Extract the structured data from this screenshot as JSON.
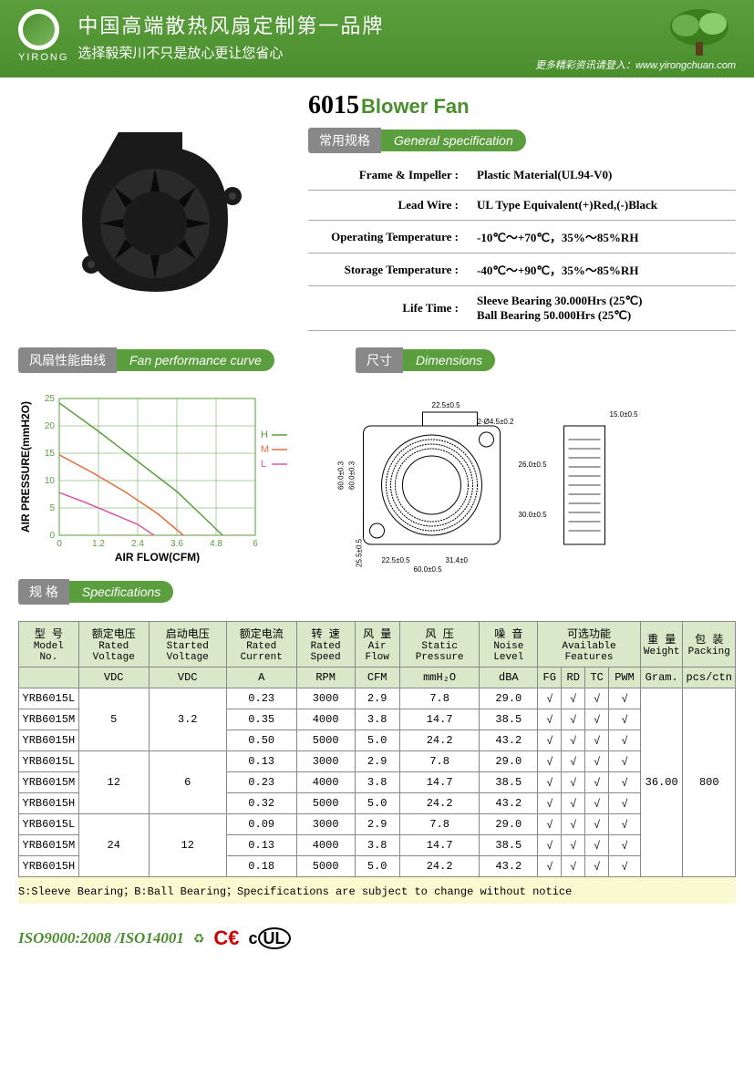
{
  "header": {
    "brand": "YIRONG",
    "title_cn": "中国高端散热风扇定制第一品牌",
    "subtitle_cn": "选择毅荣川不只是放心更让您省心",
    "url_prefix": "更多精彩资讯请登入：",
    "url": "www.yirongchuan.com"
  },
  "product": {
    "model": "6015",
    "name": "Blower Fan"
  },
  "sections": {
    "general_spec": {
      "cn": "常用规格",
      "en": "General specification"
    },
    "perf_curve": {
      "cn": "风扇性能曲线",
      "en": "Fan performance curve"
    },
    "dimensions": {
      "cn": "尺寸",
      "en": "Dimensions"
    },
    "specifications": {
      "cn": "规 格",
      "en": "Specifications"
    }
  },
  "general_specs": [
    {
      "label": "Frame & Impeller :",
      "value": "Plastic Material(UL94-V0)"
    },
    {
      "label": "Lead Wire :",
      "value": "UL Type Equivalent(+)Red,(-)Black"
    },
    {
      "label": "Operating Temperature :",
      "value": "-10℃～+70℃，35%～85%RH"
    },
    {
      "label": "Storage Temperature :",
      "value": "-40℃～+90℃，35%～85%RH"
    },
    {
      "label": "Life Time :",
      "value": "Sleeve Bearing 30.000Hrs (25℃)\nBall Bearing 50.000Hrs (25℃)"
    }
  ],
  "chart": {
    "xlabel": "AIR FLOW(CFM)",
    "ylabel": "AIR PRESSURE(mmH2O)",
    "xlim": [
      0,
      6
    ],
    "ylim": [
      0,
      25
    ],
    "xticks": [
      0,
      1.2,
      2.4,
      3.6,
      4.8,
      6
    ],
    "yticks": [
      0,
      5,
      10,
      15,
      20,
      25
    ],
    "tick_font": 10,
    "label_font": 12,
    "grid_color": "#5a9e3e",
    "series": [
      {
        "name": "H",
        "color": "#5a9e3e",
        "points": [
          [
            0,
            24.2
          ],
          [
            1.2,
            19
          ],
          [
            2.4,
            13.5
          ],
          [
            3.6,
            8
          ],
          [
            5.0,
            0
          ]
        ]
      },
      {
        "name": "M",
        "color": "#e07040",
        "points": [
          [
            0,
            14.7
          ],
          [
            1.0,
            11.5
          ],
          [
            2.0,
            8
          ],
          [
            3.0,
            4
          ],
          [
            3.8,
            0
          ]
        ]
      },
      {
        "name": "L",
        "color": "#d858a8",
        "points": [
          [
            0,
            7.8
          ],
          [
            0.8,
            6
          ],
          [
            1.6,
            4
          ],
          [
            2.4,
            2
          ],
          [
            2.9,
            0
          ]
        ]
      }
    ],
    "legend_pos": "right"
  },
  "dimensions": {
    "labels": [
      "22.5±0.5",
      "15.0±0.5",
      "2-Ø4.5±0.2",
      "26.0±0.5",
      "30.0±0.5",
      "60.0±0.3",
      "60.0±0.3",
      "22.5±0.5",
      "31.4±0",
      "60.0±0.5",
      "25.5±0.5"
    ]
  },
  "spec_table": {
    "headers": [
      {
        "cn": "型  号",
        "en": "Model No.",
        "unit": ""
      },
      {
        "cn": "额定电压",
        "en": "Rated Voltage",
        "unit": "VDC"
      },
      {
        "cn": "启动电压",
        "en": "Started Voltage",
        "unit": "VDC"
      },
      {
        "cn": "额定电流",
        "en": "Rated Current",
        "unit": "A"
      },
      {
        "cn": "转 速",
        "en": "Rated Speed",
        "unit": "RPM"
      },
      {
        "cn": "风 量",
        "en": "Air Flow",
        "unit": "CFM"
      },
      {
        "cn": "风 压",
        "en": "Static Pressure",
        "unit": "mmH₂O"
      },
      {
        "cn": "噪 音",
        "en": "Noise Level",
        "unit": "dBA"
      },
      {
        "cn": "可选功能",
        "en": "Available Features",
        "unit": "",
        "colspan": 4,
        "sub": [
          "FG",
          "RD",
          "TC",
          "PWM"
        ]
      },
      {
        "cn": "重 量",
        "en": "Weight",
        "unit": "Gram."
      },
      {
        "cn": "包 装",
        "en": "Packing",
        "unit": "pcs/ctn"
      }
    ],
    "groups": [
      {
        "voltage": "5",
        "started": "3.2",
        "rows": [
          {
            "model": "YRB6015L",
            "current": "0.23",
            "speed": "3000",
            "flow": "2.9",
            "pressure": "7.8",
            "noise": "29.0"
          },
          {
            "model": "YRB6015M",
            "current": "0.35",
            "speed": "4000",
            "flow": "3.8",
            "pressure": "14.7",
            "noise": "38.5"
          },
          {
            "model": "YRB6015H",
            "current": "0.50",
            "speed": "5000",
            "flow": "5.0",
            "pressure": "24.2",
            "noise": "43.2"
          }
        ]
      },
      {
        "voltage": "12",
        "started": "6",
        "rows": [
          {
            "model": "YRB6015L",
            "current": "0.13",
            "speed": "3000",
            "flow": "2.9",
            "pressure": "7.8",
            "noise": "29.0"
          },
          {
            "model": "YRB6015M",
            "current": "0.23",
            "speed": "4000",
            "flow": "3.8",
            "pressure": "14.7",
            "noise": "38.5"
          },
          {
            "model": "YRB6015H",
            "current": "0.32",
            "speed": "5000",
            "flow": "5.0",
            "pressure": "24.2",
            "noise": "43.2"
          }
        ]
      },
      {
        "voltage": "24",
        "started": "12",
        "rows": [
          {
            "model": "YRB6015L",
            "current": "0.09",
            "speed": "3000",
            "flow": "2.9",
            "pressure": "7.8",
            "noise": "29.0"
          },
          {
            "model": "YRB6015M",
            "current": "0.13",
            "speed": "4000",
            "flow": "3.8",
            "pressure": "14.7",
            "noise": "38.5"
          },
          {
            "model": "YRB6015H",
            "current": "0.18",
            "speed": "5000",
            "flow": "5.0",
            "pressure": "24.2",
            "noise": "43.2"
          }
        ]
      }
    ],
    "weight": "36.00",
    "packing": "800",
    "check": "√",
    "footnote": "S:Sleeve Bearing；B:Ball Bearing；Specifications are subject to change without notice"
  },
  "footer": {
    "iso": "ISO9000:2008 /ISO14001",
    "certs": [
      "RoHS",
      "CE",
      "UL"
    ]
  },
  "colors": {
    "brand_green": "#5a9e3e",
    "badge_grey": "#888888",
    "table_header_bg": "#d8e8c8"
  }
}
